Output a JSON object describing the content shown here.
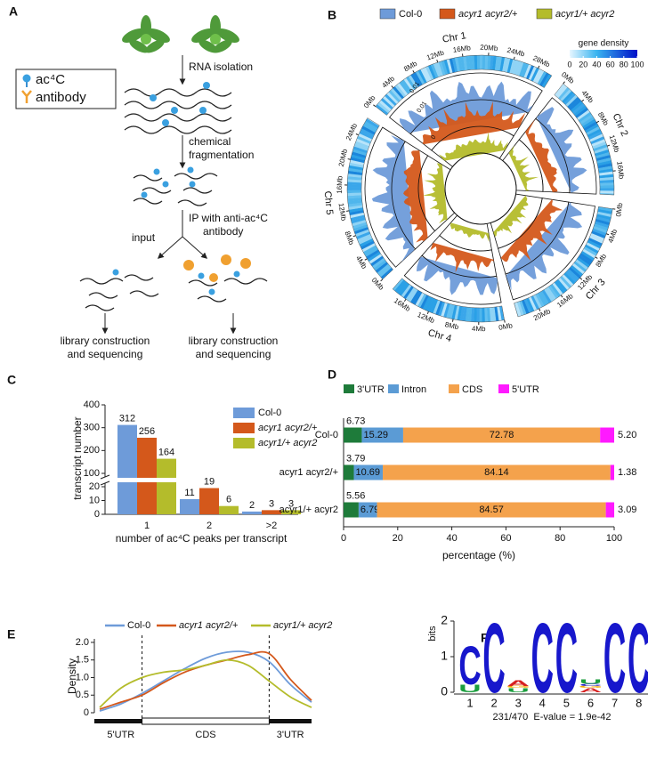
{
  "panel_a": {
    "label": "A",
    "legend": [
      "ac⁴C",
      "antibody"
    ],
    "steps": [
      [
        "RNA isolation"
      ],
      [
        "chemical",
        "fragmentation"
      ],
      [
        "IP with anti-ac⁴C",
        "antibody"
      ]
    ],
    "input": "input",
    "outputs": [
      [
        "library construction",
        "and sequencing"
      ],
      [
        "library construction",
        "and sequencing"
      ]
    ]
  },
  "panel_b": {
    "label": "B",
    "legend": [
      {
        "name": "Col-0",
        "color": "#6e9bd9"
      },
      {
        "name": "acyr1 acyr2/+",
        "color": "#d4581b"
      },
      {
        "name": "acyr1/+ acyr2",
        "color": "#b4bc2b"
      }
    ],
    "chromosomes": [
      {
        "name": "Chr 1",
        "length": 30.4,
        "ticks": [
          {
            "value": 0,
            "label": "0Mb"
          },
          {
            "value": 4,
            "label": "4Mb"
          },
          {
            "value": 8,
            "label": "8Mb"
          },
          {
            "value": 12,
            "label": "12Mb"
          },
          {
            "value": 16,
            "label": "16Mb"
          },
          {
            "value": 20,
            "label": "20Mb"
          },
          {
            "value": 24,
            "label": "24Mb"
          },
          {
            "value": 28,
            "label": "28Mb"
          }
        ]
      },
      {
        "name": "Chr 2",
        "length": 19.7,
        "ticks": [
          {
            "value": 0,
            "label": "0Mb"
          },
          {
            "value": 4,
            "label": "4Mb"
          },
          {
            "value": 8,
            "label": "8Mb"
          },
          {
            "value": 12,
            "label": "12Mb"
          },
          {
            "value": 16,
            "label": "16Mb"
          }
        ]
      },
      {
        "name": "Chr 3",
        "length": 23.5,
        "ticks": [
          {
            "value": 0,
            "label": "0Mb"
          },
          {
            "value": 4,
            "label": "4Mb"
          },
          {
            "value": 8,
            "label": "8Mb"
          },
          {
            "value": 12,
            "label": "12Mb"
          },
          {
            "value": 16,
            "label": "16Mb"
          },
          {
            "value": 20,
            "label": "20Mb"
          }
        ]
      },
      {
        "name": "Chr 4",
        "length": 18.6,
        "ticks": [
          {
            "value": 0,
            "label": "0Mb"
          },
          {
            "value": 4,
            "label": "4Mb"
          },
          {
            "value": 8,
            "label": "8Mb"
          },
          {
            "value": 12,
            "label": "12Mb"
          },
          {
            "value": 16,
            "label": "16Mb"
          }
        ]
      },
      {
        "name": "Chr 5",
        "length": 27.0,
        "ticks": [
          {
            "value": 0,
            "label": "0Mb"
          },
          {
            "value": 4,
            "label": "4Mb"
          },
          {
            "value": 8,
            "label": "8Mb"
          },
          {
            "value": 12,
            "label": "12Mb"
          },
          {
            "value": 16,
            "label": "16Mb"
          },
          {
            "value": 20,
            "label": "20Mb"
          },
          {
            "value": 24,
            "label": "24Mb"
          }
        ]
      }
    ],
    "density_legend": {
      "title": "gene density",
      "lim": [
        0,
        100
      ],
      "ticks": [
        0,
        20,
        40,
        60,
        80,
        100
      ]
    },
    "track_scale_labels": [
      "0.01",
      "0.01",
      "0"
    ]
  },
  "panel_c": {
    "type": "bar",
    "label": "C",
    "categories": [
      "1",
      "2",
      ">2"
    ],
    "series": [
      {
        "name": "Col-0",
        "color": "#6e9bd9",
        "values": [
          312,
          11,
          2
        ]
      },
      {
        "name": "acyr1 acyr2/+",
        "color": "#d4581b",
        "values": [
          256,
          19,
          3
        ]
      },
      {
        "name": "acyr1/+ acyr2",
        "color": "#b4bc2b",
        "values": [
          164,
          6,
          3
        ]
      }
    ],
    "ylim": [
      0,
      400
    ],
    "ybreak": [
      20,
      100
    ],
    "yticks": [
      0,
      10,
      20,
      100,
      200,
      300,
      400
    ],
    "ylabel": "transcript number",
    "xlabel": "number of ac⁴C peaks per transcript"
  },
  "panel_d": {
    "type": "stacked_barh",
    "label": "D",
    "categories": [
      "Col-0",
      "acyr1 acyr2/+",
      "acyr1/+ acyr2"
    ],
    "series": [
      {
        "name": "3'UTR",
        "color": "#1e7b3a",
        "values": [
          6.73,
          3.79,
          5.56
        ],
        "value_labels": [
          "6.73",
          "3.79",
          "5.56"
        ]
      },
      {
        "name": "Intron",
        "color": "#5b9bd5",
        "values": [
          15.29,
          10.69,
          6.79
        ],
        "value_labels": [
          "15.29",
          "10.69",
          "6.79"
        ]
      },
      {
        "name": "CDS",
        "color": "#f4a24c",
        "values": [
          72.78,
          84.14,
          84.57
        ],
        "value_labels": [
          "72.78",
          "84.14",
          "84.57"
        ]
      },
      {
        "name": "5'UTR",
        "color": "#ff1aff",
        "values": [
          5.2,
          1.38,
          3.09
        ],
        "value_labels": [
          "5.20",
          "1.38",
          "3.09"
        ]
      }
    ],
    "xlim": [
      0,
      100
    ],
    "xticks": [
      0,
      20,
      40,
      60,
      80,
      100
    ],
    "xlabel": "percentage (%)"
  },
  "panel_e": {
    "type": "line",
    "label": "E",
    "x": [
      0,
      10,
      20,
      30,
      40,
      50,
      60,
      70,
      80,
      90,
      100
    ],
    "xlim": [
      0,
      100
    ],
    "series": [
      {
        "name": "Col-0",
        "color": "#6e9bd9",
        "values": [
          0.05,
          0.25,
          0.55,
          0.9,
          1.25,
          1.55,
          1.72,
          1.72,
          1.45,
          0.8,
          0.3
        ]
      },
      {
        "name": "acyr1 acyr2/+",
        "color": "#d4581b",
        "values": [
          0.1,
          0.3,
          0.5,
          0.85,
          1.15,
          1.35,
          1.5,
          1.65,
          1.68,
          0.95,
          0.35
        ]
      },
      {
        "name": "acyr1/+ acyr2",
        "color": "#b4bc2b",
        "values": [
          0.15,
          0.7,
          1.0,
          1.15,
          1.22,
          1.35,
          1.5,
          1.35,
          0.9,
          0.45,
          0.15
        ]
      }
    ],
    "ylim": [
      0,
      2.1
    ],
    "yticks": [
      0,
      0.5,
      {
        "value": 1,
        "label": "1.0"
      },
      1.5,
      {
        "value": 2,
        "label": "2.0"
      }
    ],
    "ylabel": "Density",
    "region_bounds": [
      20,
      80
    ],
    "regions": [
      "5'UTR",
      "CDS",
      "3'UTR"
    ]
  },
  "panel_f": {
    "type": "logo",
    "label": "F",
    "positions": [
      1,
      2,
      3,
      4,
      5,
      6,
      7,
      8
    ],
    "letters": [
      [
        {
          "letter": "U",
          "height": 0.22
        },
        {
          "letter": "C",
          "height": 1.1
        }
      ],
      [
        {
          "letter": "C",
          "height": 2
        }
      ],
      [
        {
          "letter": "U",
          "height": 0.12
        },
        {
          "letter": "G",
          "height": 0.06
        },
        {
          "letter": "A",
          "height": 0.16
        }
      ],
      [
        {
          "letter": "C",
          "height": 2
        }
      ],
      [
        {
          "letter": "C",
          "height": 2
        }
      ],
      [
        {
          "letter": "A",
          "height": 0.12
        },
        {
          "letter": "G",
          "height": 0.06
        },
        {
          "letter": "C",
          "height": 0.06
        },
        {
          "letter": "U",
          "height": 0.14
        }
      ],
      [
        {
          "letter": "C",
          "height": 2
        }
      ],
      [
        {
          "letter": "C",
          "height": 2
        }
      ]
    ],
    "colors": {
      "C": "#1717cc",
      "U": "#1b9e3e",
      "A": "#d62020",
      "G": "#f2a900"
    },
    "ylim": [
      0,
      2
    ],
    "yticks": [
      0,
      1,
      2
    ],
    "ylabel": "bits",
    "caption": "231/470  E-value = 1.9e-42"
  }
}
